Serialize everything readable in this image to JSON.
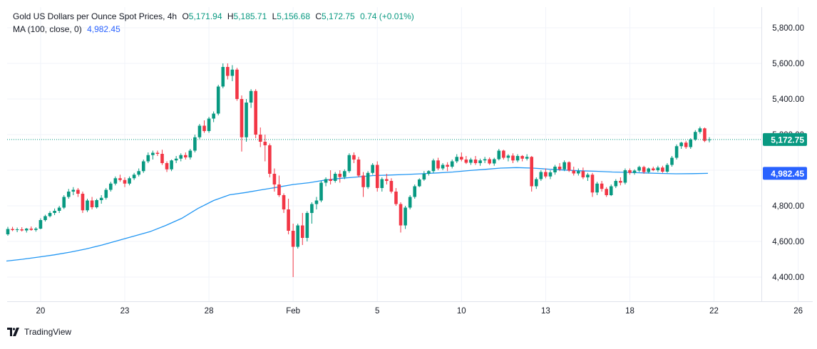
{
  "header": {
    "symbol": "Gold US Dollars per Ounce Spot Prices, 4h",
    "open_label": "O",
    "open": "5,171.94",
    "high_label": "H",
    "high": "5,185.71",
    "low_label": "L",
    "low": "5,156.68",
    "close_label": "C",
    "close": "5,172.75",
    "change": "0.74 (+0.01%)",
    "ma_label": "MA (100, close, 0)",
    "ma_value": "4,982.45"
  },
  "branding": {
    "name": "TradingView"
  },
  "colors": {
    "up": "#089981",
    "down": "#f23645",
    "ma": "#2196f3",
    "last_price_badge": "#089981",
    "ma_badge": "#2962ff",
    "grid": "#f0f3fa",
    "text": "#131722"
  },
  "chart_data": {
    "type": "candlestick",
    "title": "Gold US Dollars per Ounce Spot Prices, 4h",
    "xlabel": "",
    "ylabel": "",
    "ylim": [
      4250,
      5900
    ],
    "grid": true,
    "y_ticks": [
      4400,
      4600,
      4800,
      5000,
      5200,
      5400,
      5600,
      5800
    ],
    "y_tick_labels": [
      "4,400.00",
      "4,600.00",
      "4,800.00",
      "5,000.00",
      "5,200.00",
      "5,400.00",
      "5,600.00",
      "5,800.00"
    ],
    "x_ticks": [
      {
        "i": 7,
        "label": "20"
      },
      {
        "i": 25,
        "label": "23"
      },
      {
        "i": 43,
        "label": "28"
      },
      {
        "i": 61,
        "label": "Feb"
      },
      {
        "i": 79,
        "label": "5"
      },
      {
        "i": 97,
        "label": "10"
      },
      {
        "i": 115,
        "label": "13"
      },
      {
        "i": 133,
        "label": "18"
      },
      {
        "i": 151,
        "label": "22"
      },
      {
        "i": 169,
        "label": "26"
      }
    ],
    "last_price": 5172.75,
    "ma_last": 4982.45,
    "candles": [
      [
        4640,
        4682,
        4632,
        4670
      ],
      [
        4670,
        4682,
        4658,
        4664
      ],
      [
        4664,
        4678,
        4652,
        4668
      ],
      [
        4668,
        4680,
        4656,
        4662
      ],
      [
        4662,
        4676,
        4650,
        4672
      ],
      [
        4672,
        4684,
        4660,
        4665
      ],
      [
        4665,
        4680,
        4655,
        4672
      ],
      [
        4672,
        4730,
        4668,
        4720
      ],
      [
        4720,
        4750,
        4712,
        4742
      ],
      [
        4742,
        4770,
        4735,
        4760
      ],
      [
        4760,
        4785,
        4748,
        4772
      ],
      [
        4772,
        4800,
        4760,
        4790
      ],
      [
        4790,
        4860,
        4782,
        4850
      ],
      [
        4850,
        4895,
        4840,
        4880
      ],
      [
        4880,
        4905,
        4860,
        4890
      ],
      [
        4890,
        4900,
        4850,
        4868
      ],
      [
        4868,
        4880,
        4760,
        4775
      ],
      [
        4775,
        4840,
        4765,
        4830
      ],
      [
        4830,
        4850,
        4780,
        4792
      ],
      [
        4792,
        4840,
        4785,
        4832
      ],
      [
        4832,
        4860,
        4812,
        4845
      ],
      [
        4845,
        4900,
        4835,
        4890
      ],
      [
        4890,
        4935,
        4880,
        4925
      ],
      [
        4925,
        4965,
        4915,
        4955
      ],
      [
        4955,
        4975,
        4935,
        4945
      ],
      [
        4945,
        4960,
        4905,
        4925
      ],
      [
        4925,
        4965,
        4915,
        4955
      ],
      [
        4955,
        4985,
        4945,
        4975
      ],
      [
        4975,
        5010,
        4965,
        4995
      ],
      [
        4995,
        5060,
        4985,
        5050
      ],
      [
        5050,
        5100,
        5040,
        5085
      ],
      [
        5085,
        5110,
        5060,
        5098
      ],
      [
        5098,
        5110,
        5080,
        5092
      ],
      [
        5092,
        5115,
        5030,
        5040
      ],
      [
        5040,
        5050,
        4990,
        5005
      ],
      [
        5005,
        5060,
        4995,
        5055
      ],
      [
        5055,
        5080,
        5040,
        5065
      ],
      [
        5065,
        5095,
        5050,
        5085
      ],
      [
        5085,
        5100,
        5060,
        5072
      ],
      [
        5072,
        5120,
        5060,
        5110
      ],
      [
        5110,
        5200,
        5100,
        5185
      ],
      [
        5185,
        5260,
        5175,
        5250
      ],
      [
        5250,
        5280,
        5210,
        5220
      ],
      [
        5220,
        5300,
        5210,
        5290
      ],
      [
        5290,
        5330,
        5270,
        5318
      ],
      [
        5318,
        5480,
        5308,
        5470
      ],
      [
        5470,
        5600,
        5460,
        5580
      ],
      [
        5580,
        5600,
        5510,
        5530
      ],
      [
        5530,
        5590,
        5500,
        5565
      ],
      [
        5565,
        5575,
        5390,
        5400
      ],
      [
        5400,
        5420,
        5105,
        5185
      ],
      [
        5185,
        5400,
        5160,
        5380
      ],
      [
        5380,
        5455,
        5350,
        5445
      ],
      [
        5445,
        5455,
        5180,
        5200
      ],
      [
        5200,
        5240,
        5130,
        5160
      ],
      [
        5160,
        5200,
        5050,
        5140
      ],
      [
        5140,
        5150,
        4960,
        4980
      ],
      [
        4980,
        5010,
        4880,
        4920
      ],
      [
        4920,
        4970,
        4850,
        4860
      ],
      [
        4860,
        4870,
        4760,
        4780
      ],
      [
        4780,
        4840,
        4640,
        4660
      ],
      [
        4660,
        4700,
        4400,
        4570
      ],
      [
        4570,
        4700,
        4560,
        4690
      ],
      [
        4690,
        4760,
        4580,
        4620
      ],
      [
        4620,
        4770,
        4600,
        4760
      ],
      [
        4760,
        4820,
        4700,
        4810
      ],
      [
        4810,
        4850,
        4780,
        4830
      ],
      [
        4830,
        4940,
        4820,
        4930
      ],
      [
        4930,
        4960,
        4910,
        4950
      ],
      [
        4950,
        5000,
        4920,
        4940
      ],
      [
        4940,
        4990,
        4930,
        4980
      ],
      [
        4980,
        5000,
        4930,
        4962
      ],
      [
        4962,
        5005,
        4950,
        4995
      ],
      [
        4995,
        5095,
        4985,
        5085
      ],
      [
        5085,
        5100,
        5040,
        5060
      ],
      [
        5060,
        5075,
        4960,
        4970
      ],
      [
        4970,
        4990,
        4850,
        4905
      ],
      [
        4905,
        4995,
        4895,
        4985
      ],
      [
        4985,
        5040,
        4975,
        5030
      ],
      [
        5030,
        5050,
        4880,
        4900
      ],
      [
        4900,
        4960,
        4880,
        4950
      ],
      [
        4950,
        4980,
        4920,
        4940
      ],
      [
        4940,
        4955,
        4870,
        4880
      ],
      [
        4880,
        4900,
        4800,
        4810
      ],
      [
        4810,
        4820,
        4650,
        4690
      ],
      [
        4690,
        4800,
        4670,
        4790
      ],
      [
        4790,
        4860,
        4780,
        4850
      ],
      [
        4850,
        4920,
        4840,
        4910
      ],
      [
        4910,
        4955,
        4905,
        4948
      ],
      [
        4948,
        4995,
        4940,
        4980
      ],
      [
        4980,
        5000,
        4970,
        4995
      ],
      [
        4995,
        5065,
        4985,
        5055
      ],
      [
        5055,
        5070,
        5000,
        5010
      ],
      [
        5010,
        5040,
        5000,
        5030
      ],
      [
        5030,
        5045,
        4995,
        5020
      ],
      [
        5020,
        5060,
        5010,
        5050
      ],
      [
        5050,
        5090,
        5040,
        5075
      ],
      [
        5075,
        5100,
        5050,
        5060
      ],
      [
        5060,
        5080,
        5035,
        5042
      ],
      [
        5042,
        5070,
        5030,
        5060
      ],
      [
        5060,
        5080,
        5030,
        5040
      ],
      [
        5040,
        5065,
        5025,
        5055
      ],
      [
        5055,
        5075,
        5040,
        5062
      ],
      [
        5062,
        5072,
        5030,
        5038
      ],
      [
        5038,
        5070,
        5025,
        5062
      ],
      [
        5062,
        5120,
        5055,
        5110
      ],
      [
        5110,
        5115,
        5060,
        5070
      ],
      [
        5070,
        5090,
        5050,
        5082
      ],
      [
        5082,
        5095,
        5040,
        5055
      ],
      [
        5055,
        5090,
        5045,
        5080
      ],
      [
        5080,
        5085,
        5050,
        5065
      ],
      [
        5065,
        5090,
        5055,
        5075
      ],
      [
        5075,
        5080,
        4880,
        4910
      ],
      [
        4910,
        4960,
        4895,
        4950
      ],
      [
        4950,
        5000,
        4940,
        4990
      ],
      [
        4990,
        5010,
        4955,
        4965
      ],
      [
        4965,
        5000,
        4950,
        4988
      ],
      [
        4988,
        5030,
        4975,
        5020
      ],
      [
        5020,
        5040,
        4995,
        5005
      ],
      [
        5005,
        5055,
        4995,
        5045
      ],
      [
        5045,
        5050,
        4990,
        4998
      ],
      [
        4998,
        5020,
        4970,
        4982
      ],
      [
        4982,
        5010,
        4970,
        4995
      ],
      [
        4995,
        5015,
        4950,
        4960
      ],
      [
        4960,
        4985,
        4940,
        4975
      ],
      [
        4975,
        4985,
        4850,
        4875
      ],
      [
        4875,
        4935,
        4860,
        4925
      ],
      [
        4925,
        4940,
        4880,
        4895
      ],
      [
        4895,
        4905,
        4850,
        4860
      ],
      [
        4860,
        4920,
        4855,
        4910
      ],
      [
        4910,
        4950,
        4900,
        4940
      ],
      [
        4940,
        4960,
        4915,
        4930
      ],
      [
        4930,
        5010,
        4920,
        5000
      ],
      [
        5000,
        5010,
        4975,
        4985
      ],
      [
        4985,
        5005,
        4975,
        4998
      ],
      [
        4998,
        5025,
        4990,
        5018
      ],
      [
        5018,
        5025,
        4980,
        4990
      ],
      [
        4990,
        5015,
        4982,
        5010
      ],
      [
        5010,
        5020,
        4995,
        5000
      ],
      [
        5000,
        5025,
        4990,
        5015
      ],
      [
        5015,
        5025,
        4985,
        4992
      ],
      [
        4992,
        5040,
        4985,
        5030
      ],
      [
        5030,
        5080,
        5020,
        5070
      ],
      [
        5070,
        5145,
        5060,
        5135
      ],
      [
        5135,
        5160,
        5120,
        5155
      ],
      [
        5155,
        5165,
        5120,
        5130
      ],
      [
        5130,
        5180,
        5120,
        5172
      ],
      [
        5172,
        5225,
        5165,
        5215
      ],
      [
        5215,
        5245,
        5205,
        5235
      ],
      [
        5235,
        5240,
        5158,
        5165
      ],
      [
        5171.94,
        5185.71,
        5156.68,
        5172.75
      ]
    ],
    "ma": [
      4490,
      4500,
      4512,
      4525,
      4540,
      4558,
      4580,
      4605,
      4630,
      4655,
      4690,
      4730,
      4785,
      4830,
      4862,
      4875,
      4890,
      4905,
      4920,
      4930,
      4945,
      4955,
      4962,
      4970,
      4973,
      4976,
      4980,
      4985,
      4990,
      4998,
      5005,
      5012,
      5015,
      5012,
      5006,
      5001,
      4997,
      4994,
      4990,
      4988,
      4985,
      4982,
      4980,
      4981,
      4982.45
    ]
  }
}
